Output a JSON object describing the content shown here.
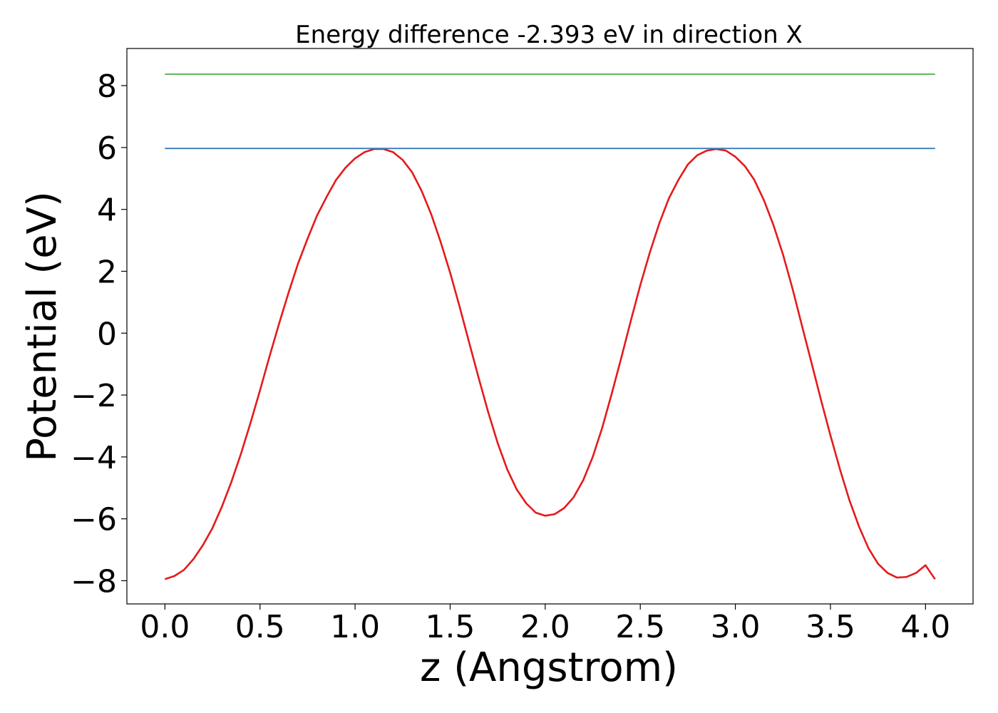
{
  "chart_data": {
    "type": "line",
    "title": "Energy difference -2.393 eV in direction X",
    "xlabel": "z (Angstrom)",
    "ylabel": "Potential (eV)",
    "xlim": [
      -0.2,
      4.25
    ],
    "ylim": [
      -8.75,
      9.2
    ],
    "xticks": [
      0.0,
      0.5,
      1.0,
      1.5,
      2.0,
      2.5,
      3.0,
      3.5,
      4.0
    ],
    "xtick_labels": [
      "0.0",
      "0.5",
      "1.0",
      "1.5",
      "2.0",
      "2.5",
      "3.0",
      "3.5",
      "4.0"
    ],
    "yticks": [
      -8,
      -6,
      -4,
      -2,
      0,
      2,
      4,
      6,
      8
    ],
    "ytick_labels": [
      "−8",
      "−6",
      "−4",
      "−2",
      "0",
      "2",
      "4",
      "6",
      "8"
    ],
    "grid": false,
    "colors": {
      "potential": "#e41a1c",
      "level_low": "#377eb8",
      "level_high": "#4daf4a"
    },
    "series": [
      {
        "color": "#e41a1c",
        "x": [
          0.0,
          0.05,
          0.1,
          0.15,
          0.2,
          0.25,
          0.3,
          0.35,
          0.4,
          0.45,
          0.5,
          0.55,
          0.6,
          0.65,
          0.7,
          0.75,
          0.8,
          0.85,
          0.9,
          0.95,
          1.0,
          1.05,
          1.1,
          1.15,
          1.2,
          1.25,
          1.3,
          1.35,
          1.4,
          1.45,
          1.5,
          1.55,
          1.6,
          1.65,
          1.7,
          1.75,
          1.8,
          1.85,
          1.9,
          1.95,
          2.0,
          2.05,
          2.1,
          2.15,
          2.2,
          2.25,
          2.3,
          2.35,
          2.4,
          2.45,
          2.5,
          2.55,
          2.6,
          2.65,
          2.7,
          2.75,
          2.8,
          2.85,
          2.9,
          2.95,
          3.0,
          3.05,
          3.1,
          3.15,
          3.2,
          3.25,
          3.3,
          3.35,
          3.4,
          3.45,
          3.5,
          3.55,
          3.6,
          3.65,
          3.7,
          3.75,
          3.8,
          3.85,
          3.9,
          3.95,
          4.0,
          4.05
        ],
        "y": [
          -7.95,
          -7.85,
          -7.65,
          -7.3,
          -6.85,
          -6.3,
          -5.6,
          -4.8,
          -3.9,
          -2.9,
          -1.85,
          -0.75,
          0.3,
          1.3,
          2.25,
          3.05,
          3.8,
          4.4,
          4.95,
          5.35,
          5.65,
          5.85,
          5.95,
          5.95,
          5.85,
          5.6,
          5.2,
          4.6,
          3.85,
          2.95,
          1.95,
          0.85,
          -0.3,
          -1.45,
          -2.55,
          -3.55,
          -4.4,
          -5.05,
          -5.5,
          -5.8,
          -5.9,
          -5.85,
          -5.65,
          -5.3,
          -4.75,
          -4.0,
          -3.05,
          -1.95,
          -0.8,
          0.4,
          1.55,
          2.6,
          3.55,
          4.35,
          4.95,
          5.45,
          5.75,
          5.9,
          5.95,
          5.9,
          5.7,
          5.4,
          4.95,
          4.3,
          3.5,
          2.55,
          1.45,
          0.25,
          -0.95,
          -2.15,
          -3.3,
          -4.4,
          -5.4,
          -6.25,
          -6.95,
          -7.45,
          -7.75,
          -7.9,
          -7.88,
          -7.75,
          -7.5,
          -7.95
        ]
      },
      {
        "color": "#377eb8",
        "x": [
          0.0,
          4.05
        ],
        "y": [
          5.97,
          5.97
        ]
      },
      {
        "color": "#4daf4a",
        "x": [
          0.0,
          4.05
        ],
        "y": [
          8.37,
          8.37
        ]
      }
    ]
  }
}
